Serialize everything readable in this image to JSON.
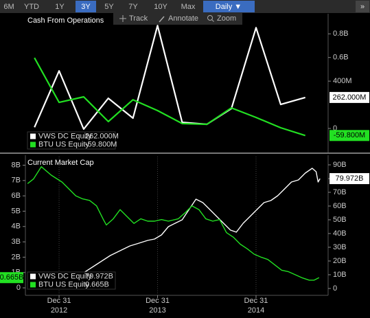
{
  "toolbar": {
    "ranges": [
      "6M",
      "YTD",
      "1Y",
      "3Y",
      "5Y",
      "7Y",
      "10Y",
      "Max"
    ],
    "selected": "3Y",
    "frequency": "Daily ▼",
    "more": "»",
    "tools": [
      "Track",
      "Annotate",
      "Zoom"
    ]
  },
  "chart_data": [
    {
      "type": "line",
      "title": "Cash From Operations",
      "axis_side": "right",
      "xlim": [
        2012.665,
        2015.732
      ],
      "ylim": [
        -0.18,
        0.97
      ],
      "yticks": [
        0,
        {
          "value": 0.4,
          "label": "400M"
        },
        {
          "value": 0.6,
          "label": "0.6B"
        },
        {
          "value": 0.8,
          "label": "0.8B"
        }
      ],
      "series": [
        {
          "name": "VWS DC Equity",
          "color": "#ffffff",
          "end_label": "262.000M",
          "x": [
            2012.75,
            2013.0,
            2013.25,
            2013.5,
            2013.75,
            2014.0,
            2014.25,
            2014.5,
            2014.75,
            2015.0,
            2015.25,
            2015.5
          ],
          "values": [
            0.01,
            0.487,
            -0.006,
            0.255,
            0.087,
            0.87,
            0.052,
            0.035,
            0.168,
            0.852,
            0.203,
            0.262
          ]
        },
        {
          "name": "BTU US Equity",
          "color": "#22e022",
          "end_label": "-59.800M",
          "x": [
            2012.75,
            2013.0,
            2013.25,
            2013.5,
            2013.75,
            2014.0,
            2014.25,
            2014.5,
            2014.75,
            2015.0,
            2015.25,
            2015.5
          ],
          "values": [
            0.597,
            0.22,
            0.267,
            0.058,
            0.243,
            0.151,
            0.041,
            0.035,
            0.174,
            0.093,
            0.006,
            -0.0598
          ]
        }
      ]
    },
    {
      "type": "line",
      "title": "Current Market Cap",
      "xlim": [
        2012.665,
        2015.732
      ],
      "xticks": [
        {
          "value": 2013,
          "label": "Dec 31"
        },
        {
          "value": 2014,
          "label": "Dec 31"
        },
        {
          "value": 2015,
          "label": "Dec 31"
        }
      ],
      "xtick_years": [
        "2012",
        "2013",
        "2014"
      ],
      "grid": true,
      "ylim": [
        -0.4,
        8.56
      ],
      "yticks": [
        0,
        {
          "value": 1,
          "label": "1B"
        },
        {
          "value": 2,
          "label": "2B"
        },
        {
          "value": 3,
          "label": "3B"
        },
        {
          "value": 4,
          "label": "4B"
        },
        {
          "value": 5,
          "label": "5B"
        },
        {
          "value": 6,
          "label": "6B"
        },
        {
          "value": 7,
          "label": "7B"
        },
        {
          "value": 8,
          "label": "8B"
        }
      ],
      "y2lim": [
        -4,
        96
      ],
      "y2ticks": [
        0,
        {
          "value": 10,
          "label": "10B"
        },
        {
          "value": 20,
          "label": "20B"
        },
        {
          "value": 30,
          "label": "30B"
        },
        {
          "value": 40,
          "label": "40B"
        },
        {
          "value": 50,
          "label": "50B"
        },
        {
          "value": 60,
          "label": "60B"
        },
        {
          "value": 70,
          "label": "70B"
        },
        {
          "value": 80,
          "label": "80B"
        },
        {
          "value": 90,
          "label": "90B"
        }
      ],
      "series": [
        {
          "name": "VWS DC Equity",
          "color": "#ffffff",
          "axis": "y2",
          "end_label": "79.972B",
          "x": [
            2012.68,
            2012.82,
            2012.96,
            2013.1,
            2013.24,
            2013.38,
            2013.52,
            2013.62,
            2013.72,
            2013.79,
            2013.9,
            2013.97,
            2014.04,
            2014.11,
            2014.18,
            2014.25,
            2014.32,
            2014.39,
            2014.46,
            2014.53,
            2014.6,
            2014.67,
            2014.74,
            2014.8,
            2014.87,
            2014.94,
            2015.01,
            2015.08,
            2015.15,
            2015.22,
            2015.29,
            2015.36,
            2015.43,
            2015.5,
            2015.57,
            2015.61,
            2015.63,
            2015.65
          ],
          "values": [
            4,
            2.5,
            5,
            9,
            11,
            17.5,
            24,
            27.5,
            31,
            32.5,
            35,
            36,
            39,
            45,
            47.5,
            50,
            57.5,
            65,
            62.5,
            57.5,
            52.5,
            47.5,
            42.5,
            41,
            47.5,
            52.5,
            57.5,
            62.5,
            64,
            67.5,
            72.5,
            77.5,
            79,
            84,
            87.5,
            85,
            77.5,
            79.972
          ]
        },
        {
          "name": "BTU US Equity",
          "color": "#22e022",
          "end_label": "0.665B",
          "x": [
            2012.68,
            2012.74,
            2012.82,
            2012.92,
            2013.03,
            2013.1,
            2013.17,
            2013.24,
            2013.31,
            2013.38,
            2013.45,
            2013.48,
            2013.55,
            2013.62,
            2013.69,
            2013.76,
            2013.83,
            2013.9,
            2013.97,
            2014.04,
            2014.11,
            2014.21,
            2014.28,
            2014.35,
            2014.42,
            2014.49,
            2014.56,
            2014.63,
            2014.7,
            2014.77,
            2014.84,
            2014.91,
            2014.98,
            2015.05,
            2015.12,
            2015.19,
            2015.26,
            2015.33,
            2015.4,
            2015.47,
            2015.54,
            2015.59,
            2015.64
          ],
          "values": [
            6.8,
            7.1,
            7.9,
            7.35,
            6.9,
            6.45,
            6.0,
            5.8,
            5.7,
            5.35,
            4.45,
            4.1,
            4.5,
            5.1,
            4.65,
            4.2,
            4.5,
            4.35,
            4.35,
            4.45,
            4.35,
            4.5,
            4.9,
            5.35,
            5.1,
            4.5,
            4.35,
            4.45,
            3.6,
            3.3,
            2.85,
            2.55,
            2.2,
            2.0,
            1.85,
            1.5,
            1.15,
            1.05,
            0.85,
            0.65,
            0.5,
            0.5,
            0.665
          ]
        }
      ]
    }
  ]
}
